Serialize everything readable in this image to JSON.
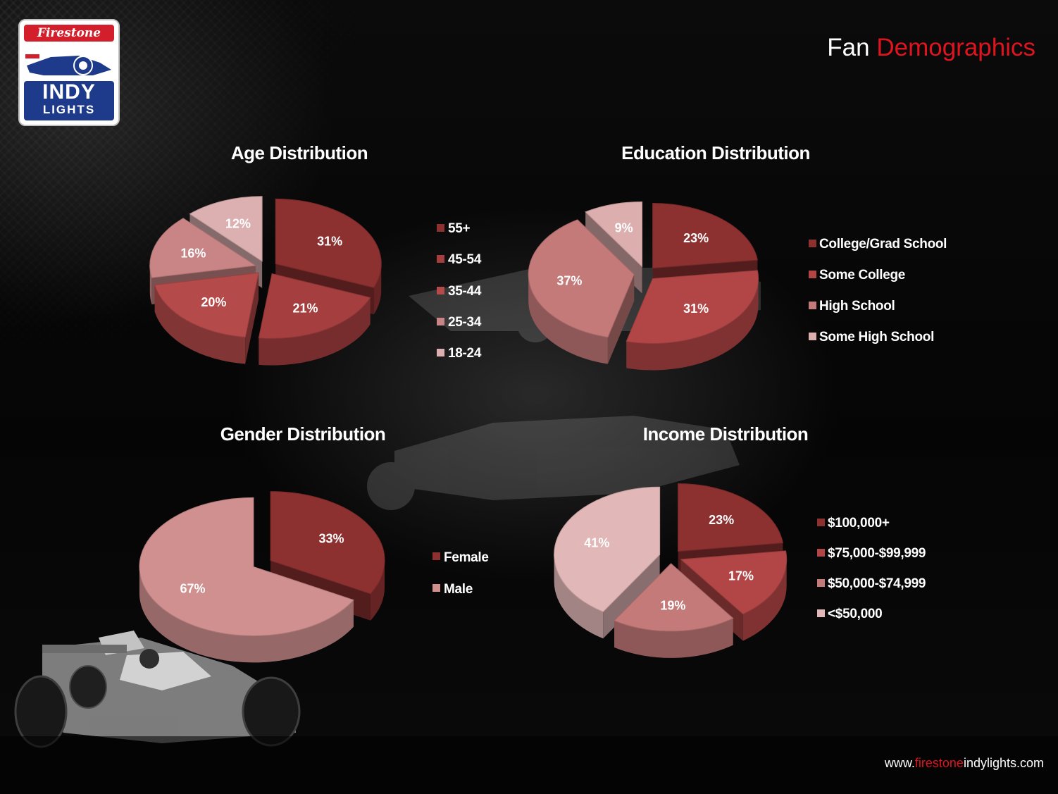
{
  "header": {
    "title_part1": "Fan ",
    "title_part2": "Demographics"
  },
  "logo": {
    "top_text": "Firestone",
    "main_text": "INDY",
    "sub_text": "LIGHTS"
  },
  "footer": {
    "website_prefix": "www.",
    "website_accent": "firestone",
    "website_suffix": "indylights.com"
  },
  "colors": {
    "title_accent": "#e0141e",
    "slice_dark_red": "#8c3030",
    "slice_red": "#b24646",
    "slice_mid_red": "#b44a4a",
    "slice_rose": "#c57a7a",
    "slice_light_rose": "#d09090",
    "slice_pale_rose": "#e2b7b7"
  },
  "chart_data": [
    {
      "type": "pie",
      "title": "Age Distribution",
      "categories": [
        "55+",
        "45-54",
        "35-44",
        "25-34",
        "18-24"
      ],
      "values": [
        31,
        21,
        20,
        16,
        12
      ],
      "labels": [
        "31%",
        "21%",
        "20%",
        "16%",
        "12%"
      ],
      "colors": [
        "#8c3030",
        "#a53e3e",
        "#b44a4a",
        "#c98585",
        "#dcb0b0"
      ],
      "legend": "right"
    },
    {
      "type": "pie",
      "title": "Education Distribution",
      "categories": [
        "College/Grad School",
        "Some College",
        "High School",
        "Some High School"
      ],
      "values": [
        23,
        31,
        37,
        9
      ],
      "labels": [
        "23%",
        "31%",
        "37%",
        "9%"
      ],
      "colors": [
        "#8c3030",
        "#b24646",
        "#c57a7a",
        "#dcaeae"
      ],
      "legend": "right"
    },
    {
      "type": "pie",
      "title": "Gender Distribution",
      "categories": [
        "Female",
        "Male"
      ],
      "values": [
        33,
        67
      ],
      "labels": [
        "33%",
        "67%"
      ],
      "colors": [
        "#8c3030",
        "#d09090"
      ],
      "legend": "right"
    },
    {
      "type": "pie",
      "title": "Income Distribution",
      "categories": [
        "$100,000+",
        "$75,000-$99,999",
        "$50,000-$74,999",
        "<$50,000"
      ],
      "values": [
        23,
        17,
        19,
        41
      ],
      "labels": [
        "23%",
        "17%",
        "19%",
        "41%"
      ],
      "colors": [
        "#8c3030",
        "#b24646",
        "#c57a7a",
        "#e2b7b7"
      ],
      "legend": "right"
    }
  ]
}
